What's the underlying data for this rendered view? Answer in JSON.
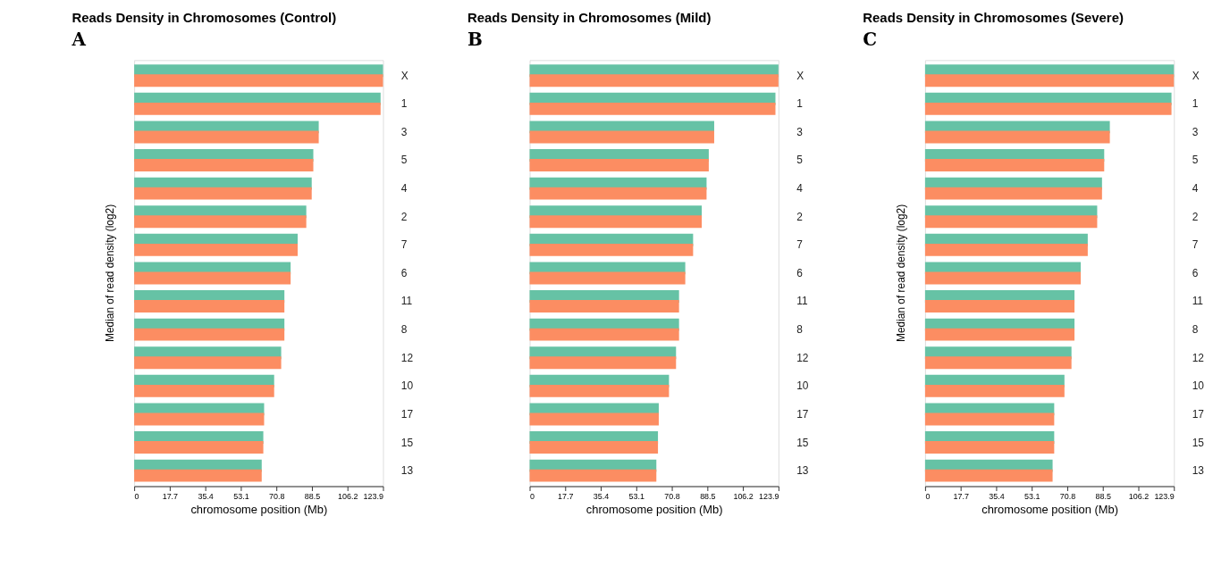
{
  "chart_data": [
    {
      "type": "bar",
      "orientation": "horizontal",
      "title": "Reads Density in Chromosomes (Control)",
      "annotations": [
        "A"
      ],
      "xlabel": "chromosome position (Mb)",
      "ylabel": "Median of read density (log2)",
      "categories": [
        "X",
        "1",
        "3",
        "5",
        "4",
        "2",
        "7",
        "6",
        "11",
        "8",
        "12",
        "10",
        "17",
        "15",
        "13"
      ],
      "series": [
        {
          "color": "#66c2a5",
          "values": [
            123.9,
            122.7,
            91.9,
            89.2,
            88.4,
            85.7,
            81.4,
            77.9,
            74.8,
            74.8,
            73.2,
            69.7,
            64.7,
            64.3,
            63.5
          ]
        },
        {
          "color": "#fc8d62",
          "values": [
            123.9,
            122.7,
            91.9,
            89.2,
            88.4,
            85.7,
            81.4,
            77.9,
            74.8,
            74.8,
            73.2,
            69.7,
            64.7,
            64.3,
            63.5
          ]
        }
      ],
      "xlim": [
        0,
        123.9
      ],
      "xticks": [
        0,
        17.7,
        35.4,
        53.1,
        70.8,
        88.5,
        106.2,
        123.9
      ],
      "grid": false,
      "legend": false
    },
    {
      "type": "bar",
      "orientation": "horizontal",
      "title": "Reads Density in Chromosomes (Mild)",
      "annotations": [
        "B"
      ],
      "xlabel": "chromosome position (Mb)",
      "categories": [
        "X",
        "1",
        "3",
        "5",
        "4",
        "2",
        "7",
        "6",
        "11",
        "8",
        "12",
        "10",
        "17",
        "15",
        "13"
      ],
      "series": [
        {
          "color": "#66c2a5",
          "values": [
            123.9,
            122.4,
            91.9,
            89.2,
            88.1,
            85.7,
            81.4,
            77.5,
            74.4,
            74.4,
            72.9,
            69.4,
            64.3,
            63.9,
            63.1
          ]
        },
        {
          "color": "#fc8d62",
          "values": [
            123.9,
            122.4,
            91.9,
            89.2,
            88.1,
            85.7,
            81.4,
            77.5,
            74.4,
            74.4,
            72.9,
            69.4,
            64.3,
            63.9,
            63.1
          ]
        }
      ],
      "xlim": [
        0,
        123.9
      ],
      "xticks": [
        0,
        17.7,
        35.4,
        53.1,
        70.8,
        88.5,
        106.2,
        123.9
      ],
      "grid": false,
      "legend": false
    },
    {
      "type": "bar",
      "orientation": "horizontal",
      "title": "Reads Density in Chromosomes (Severe)",
      "annotations": [
        "C"
      ],
      "xlabel": "chromosome position (Mb)",
      "ylabel": "Median of read density (log2)",
      "categories": [
        "X",
        "1",
        "3",
        "5",
        "4",
        "2",
        "7",
        "6",
        "11",
        "8",
        "12",
        "10",
        "17",
        "15",
        "13"
      ],
      "series": [
        {
          "color": "#66c2a5",
          "values": [
            123.9,
            122.7,
            92.0,
            89.2,
            88.1,
            85.7,
            81.0,
            77.5,
            74.4,
            74.4,
            72.9,
            69.4,
            64.3,
            64.3,
            63.5
          ]
        },
        {
          "color": "#fc8d62",
          "values": [
            123.9,
            122.7,
            92.0,
            89.2,
            88.1,
            85.7,
            81.0,
            77.5,
            74.4,
            74.4,
            72.9,
            69.4,
            64.3,
            64.3,
            63.5
          ]
        }
      ],
      "xlim": [
        0,
        123.9
      ],
      "xticks": [
        0,
        17.7,
        35.4,
        53.1,
        70.8,
        88.5,
        106.2,
        123.9
      ],
      "grid": false,
      "legend": false
    }
  ]
}
